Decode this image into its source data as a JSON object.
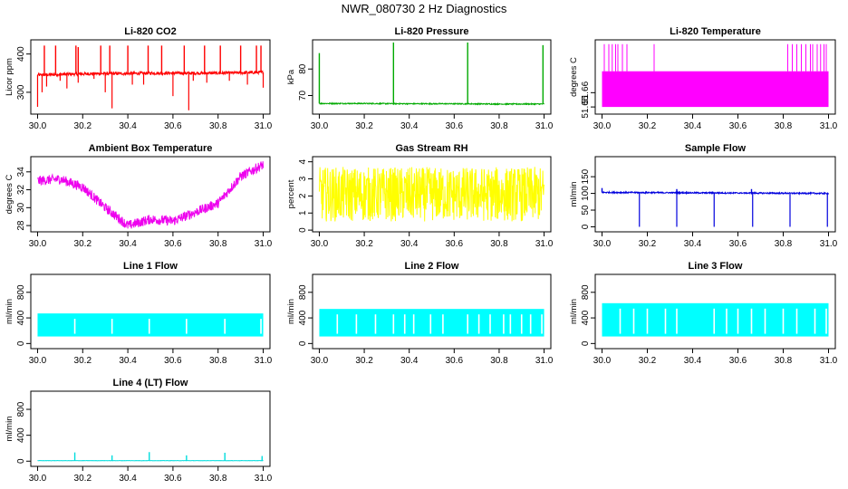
{
  "figure": {
    "title": "NWR_080730  2 Hz Diagnostics"
  },
  "chart_data": [
    {
      "id": "co2",
      "type": "line",
      "title": "Li-820 CO2",
      "xlabel": "",
      "ylabel": "Licor ppm",
      "color": "#ff0000",
      "xlim": [
        29.97,
        31.03
      ],
      "ylim": [
        243,
        437
      ],
      "xticks": [
        "30.0",
        "30.2",
        "30.4",
        "30.6",
        "30.8",
        "31.0"
      ],
      "yticks": [
        "300",
        "400"
      ],
      "series": [
        {
          "base": {
            "x": [
              30.0,
              30.1,
              30.2,
              30.3,
              30.4,
              30.5,
              30.6,
              30.7,
              30.8,
              30.9,
              31.0
            ],
            "y": [
              345,
              347,
              348,
              349,
              349,
              350,
              350,
              350,
              350,
              351,
              352
            ]
          },
          "spikes_up": [
            [
              30.03,
              422
            ],
            [
              30.08,
              422
            ],
            [
              30.17,
              422
            ],
            [
              30.18,
              418
            ],
            [
              30.28,
              422
            ],
            [
              30.32,
              422
            ],
            [
              30.4,
              422
            ],
            [
              30.49,
              422
            ],
            [
              30.55,
              422
            ],
            [
              30.65,
              422
            ],
            [
              30.74,
              422
            ],
            [
              30.81,
              422
            ],
            [
              30.9,
              422
            ],
            [
              30.97,
              422
            ],
            [
              30.99,
              422
            ]
          ],
          "spikes_down": [
            [
              30.0,
              262
            ],
            [
              30.02,
              300
            ],
            [
              30.04,
              315
            ],
            [
              30.1,
              330
            ],
            [
              30.13,
              310
            ],
            [
              30.18,
              325
            ],
            [
              30.25,
              335
            ],
            [
              30.3,
              300
            ],
            [
              30.33,
              258
            ],
            [
              30.42,
              320
            ],
            [
              30.47,
              320
            ],
            [
              30.6,
              290
            ],
            [
              30.67,
              253
            ],
            [
              30.69,
              330
            ],
            [
              30.75,
              325
            ],
            [
              30.85,
              330
            ],
            [
              30.93,
              320
            ],
            [
              31.0,
              312
            ]
          ],
          "noise": 4
        }
      ]
    },
    {
      "id": "pressure",
      "type": "line",
      "title": "Li-820 Pressure",
      "xlabel": "",
      "ylabel": "kPa",
      "color": "#00aa00",
      "xlim": [
        29.97,
        31.03
      ],
      "ylim": [
        63,
        91
      ],
      "xticks": [
        "30.0",
        "30.2",
        "30.4",
        "30.6",
        "30.8",
        "31.0"
      ],
      "yticks": [
        "70",
        "80"
      ],
      "series": [
        {
          "base": {
            "x": [
              30.0,
              30.2,
              30.4,
              30.6,
              30.8,
              31.0
            ],
            "y": [
              67.0,
              67.0,
              66.9,
              66.9,
              66.8,
              66.8
            ]
          },
          "spikes_up": [
            [
              30.0,
              86
            ],
            [
              30.33,
              90
            ],
            [
              30.66,
              90
            ],
            [
              30.995,
              89
            ]
          ],
          "noise": 0.2
        }
      ]
    },
    {
      "id": "temperature",
      "type": "line",
      "title": "Li-820 Temperature",
      "xlabel": "",
      "ylabel": "degrees C",
      "color": "#ff00ff",
      "xlim": [
        29.97,
        31.03
      ],
      "ylim": [
        51.645,
        51.697
      ],
      "xticks": [
        "30.0",
        "30.2",
        "30.4",
        "30.6",
        "30.8",
        "31.0"
      ],
      "yticks": [
        "51.65",
        "51.66"
      ],
      "band": [
        51.65,
        51.675
      ],
      "spikes": [
        30.01,
        30.03,
        30.045,
        30.06,
        30.07,
        30.09,
        30.11,
        30.23,
        30.82,
        30.84,
        30.86,
        30.88,
        30.9,
        30.92,
        30.93,
        30.95,
        30.965,
        30.98,
        30.99
      ],
      "spike_top": 51.694
    },
    {
      "id": "boxtemp",
      "type": "line",
      "title": "Ambient Box Temperature",
      "xlabel": "",
      "ylabel": "degrees C",
      "color": "#ee00ee",
      "xlim": [
        29.97,
        31.03
      ],
      "ylim": [
        27.3,
        35.7
      ],
      "xticks": [
        "30.0",
        "30.2",
        "30.4",
        "30.6",
        "30.8",
        "31.0"
      ],
      "yticks": [
        "28",
        "30",
        "32",
        "34"
      ],
      "series": [
        {
          "base": {
            "x": [
              30.0,
              30.1,
              30.2,
              30.3,
              30.4,
              30.5,
              30.6,
              30.7,
              30.8,
              30.9,
              31.0
            ],
            "y": [
              33.0,
              33.2,
              32.3,
              30.0,
              28.0,
              28.7,
              28.5,
              29.5,
              30.5,
              33.5,
              34.8
            ]
          },
          "noise": 0.55
        }
      ]
    },
    {
      "id": "rh",
      "type": "line",
      "title": "Gas Stream RH",
      "xlabel": "",
      "ylabel": "percent",
      "color": "#ffff00",
      "xlim": [
        29.97,
        31.03
      ],
      "ylim": [
        -0.1,
        4.3
      ],
      "xticks": [
        "30.0",
        "30.2",
        "30.4",
        "30.6",
        "30.8",
        "31.0"
      ],
      "yticks": [
        "0",
        "1",
        "2",
        "3",
        "4"
      ],
      "series": [
        {
          "base": {
            "x": [
              30.0,
              31.0
            ],
            "y": [
              2.1,
              2.1
            ]
          },
          "noise": 1.6
        }
      ]
    },
    {
      "id": "sampleflow",
      "type": "line",
      "title": "Sample Flow",
      "xlabel": "",
      "ylabel": "ml/min",
      "color": "#0000dd",
      "xlim": [
        29.97,
        31.03
      ],
      "ylim": [
        -15,
        210
      ],
      "xticks": [
        "30.0",
        "30.2",
        "30.4",
        "30.6",
        "30.8",
        "31.0"
      ],
      "yticks": [
        "0",
        "50",
        "100",
        "150"
      ],
      "series": [
        {
          "base": {
            "x": [
              30.0,
              31.0
            ],
            "y": [
              103,
              100
            ]
          },
          "spikes_up": [
            [
              30.0,
              116
            ],
            [
              30.33,
              113
            ],
            [
              30.66,
              113
            ]
          ],
          "spikes_down": [
            [
              30.165,
              0
            ],
            [
              30.33,
              0
            ],
            [
              30.495,
              0
            ],
            [
              30.665,
              0
            ],
            [
              30.83,
              0
            ],
            [
              30.995,
              0
            ]
          ],
          "noise": 2
        }
      ]
    },
    {
      "id": "line1",
      "type": "line",
      "title": "Line 1 Flow",
      "xlabel": "",
      "ylabel": "ml/min",
      "color": "#00ffff",
      "xlim": [
        29.97,
        31.03
      ],
      "ylim": [
        -80,
        1080
      ],
      "xticks": [
        "30.0",
        "30.2",
        "30.4",
        "30.6",
        "30.8",
        "31.0"
      ],
      "yticks": [
        "0",
        "400",
        "800"
      ],
      "band": [
        110,
        470
      ],
      "gaps": [
        30.165,
        30.33,
        30.495,
        30.66,
        30.83,
        30.99
      ]
    },
    {
      "id": "line2",
      "type": "line",
      "title": "Line 2 Flow",
      "xlabel": "",
      "ylabel": "ml/min",
      "color": "#00ffff",
      "xlim": [
        29.97,
        31.03
      ],
      "ylim": [
        -80,
        1080
      ],
      "xticks": [
        "30.0",
        "30.2",
        "30.4",
        "30.6",
        "30.8",
        "31.0"
      ],
      "yticks": [
        "0",
        "400",
        "800"
      ],
      "band": [
        110,
        540
      ],
      "gaps": [
        30.08,
        30.165,
        30.25,
        30.33,
        30.38,
        30.42,
        30.495,
        30.55,
        30.66,
        30.71,
        30.76,
        30.82,
        30.85,
        30.9,
        30.94,
        30.99
      ]
    },
    {
      "id": "line3",
      "type": "line",
      "title": "Line 3 Flow",
      "xlabel": "",
      "ylabel": "ml/min",
      "color": "#00ffff",
      "xlim": [
        29.97,
        31.03
      ],
      "ylim": [
        -80,
        1080
      ],
      "xticks": [
        "30.0",
        "30.2",
        "30.4",
        "30.6",
        "30.8",
        "31.0"
      ],
      "yticks": [
        "0",
        "400",
        "800"
      ],
      "band": [
        110,
        630
      ],
      "gaps": [
        30.08,
        30.14,
        30.2,
        30.28,
        30.33,
        30.495,
        30.55,
        30.6,
        30.66,
        30.72,
        30.8,
        30.86,
        30.94,
        30.99
      ]
    },
    {
      "id": "line4",
      "type": "line",
      "title": "Line 4 (LT) Flow",
      "xlabel": "",
      "ylabel": "ml/min",
      "color": "#00dddd",
      "xlim": [
        29.97,
        31.03
      ],
      "ylim": [
        -80,
        1080
      ],
      "xticks": [
        "30.0",
        "30.2",
        "30.4",
        "30.6",
        "30.8",
        "31.0"
      ],
      "yticks": [
        "0",
        "400",
        "800"
      ],
      "series": [
        {
          "base": {
            "x": [
              30.0,
              31.0
            ],
            "y": [
              8,
              8
            ]
          },
          "spikes_up": [
            [
              30.165,
              135
            ],
            [
              30.33,
              90
            ],
            [
              30.495,
              140
            ],
            [
              30.66,
              90
            ],
            [
              30.83,
              130
            ],
            [
              30.995,
              80
            ]
          ],
          "noise": 2
        }
      ]
    }
  ]
}
